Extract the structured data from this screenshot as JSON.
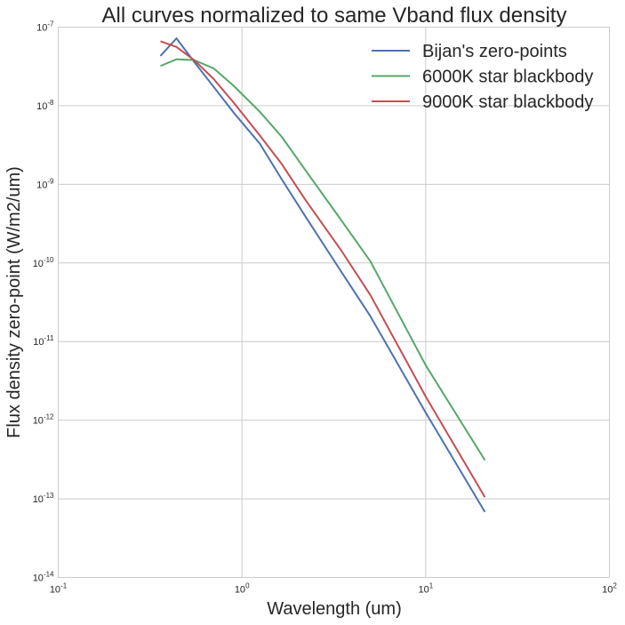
{
  "chart_data": {
    "type": "line",
    "title": "All curves normalized to same Vband flux density",
    "xlabel": "Wavelength (um)",
    "ylabel": "Flux density zero-point (W/m2/um)",
    "xscale": "log",
    "yscale": "log",
    "xlim": [
      0.1,
      100
    ],
    "ylim": [
      1e-14,
      1e-07
    ],
    "grid": true,
    "legend_position": "top-right",
    "x_ticks": [
      {
        "base": "10",
        "exp": "-1",
        "value": 0.1
      },
      {
        "base": "10",
        "exp": "0",
        "value": 1
      },
      {
        "base": "10",
        "exp": "1",
        "value": 10
      },
      {
        "base": "10",
        "exp": "2",
        "value": 100
      }
    ],
    "y_ticks": [
      {
        "base": "10",
        "exp": "-14",
        "value": 1e-14
      },
      {
        "base": "10",
        "exp": "-13",
        "value": 1e-13
      },
      {
        "base": "10",
        "exp": "-12",
        "value": 1e-12
      },
      {
        "base": "10",
        "exp": "-11",
        "value": 1e-11
      },
      {
        "base": "10",
        "exp": "-10",
        "value": 1e-10
      },
      {
        "base": "10",
        "exp": "-9",
        "value": 1e-09
      },
      {
        "base": "10",
        "exp": "-8",
        "value": 1e-08
      },
      {
        "base": "10",
        "exp": "-7",
        "value": 1e-07
      }
    ],
    "series": [
      {
        "name": "Bijan's zero-points",
        "color": "#4c72b0",
        "x": [
          0.36,
          0.44,
          0.55,
          0.7,
          0.9,
          1.25,
          1.65,
          2.2,
          3.5,
          5.0,
          10.0,
          21.0
        ],
        "y": [
          4.3e-08,
          7.2e-08,
          3.6e-08,
          1.75e-08,
          8.2e-09,
          3.3e-09,
          1.15e-09,
          4e-10,
          7.5e-11,
          2.1e-11,
          1.25e-12,
          6.8e-14
        ]
      },
      {
        "name": "6000K star blackbody",
        "color": "#55a868",
        "x": [
          0.36,
          0.44,
          0.55,
          0.7,
          0.9,
          1.25,
          1.65,
          2.2,
          3.5,
          5.0,
          10.0,
          21.0
        ],
        "y": [
          3.2e-08,
          3.9e-08,
          3.8e-08,
          3e-08,
          1.8e-08,
          8.4e-09,
          4e-09,
          1.55e-09,
          3.4e-10,
          1.05e-10,
          5e-12,
          3.1e-13
        ]
      },
      {
        "name": "9000K star blackbody",
        "color": "#c44e52",
        "x": [
          0.36,
          0.44,
          0.55,
          0.7,
          0.9,
          1.25,
          1.65,
          2.2,
          3.5,
          5.0,
          10.0,
          21.0
        ],
        "y": [
          6.6e-08,
          5.6e-08,
          3.8e-08,
          2.2e-08,
          1.1e-08,
          4.2e-09,
          1.8e-09,
          6.5e-10,
          1.4e-10,
          3.9e-11,
          2e-12,
          1.05e-13
        ]
      }
    ]
  }
}
